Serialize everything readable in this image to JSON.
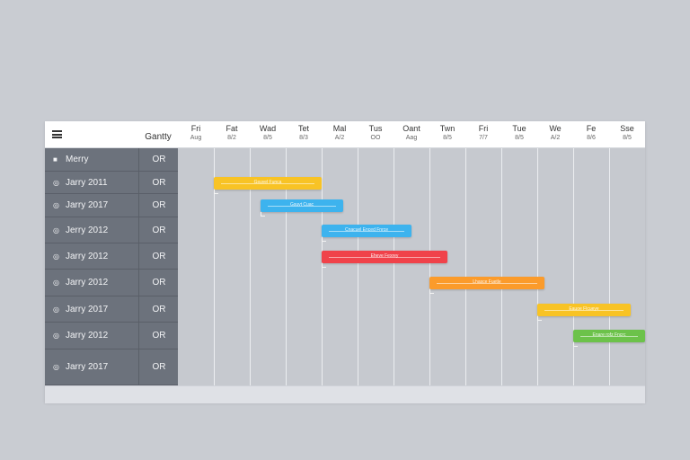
{
  "header": {
    "title": "Gantty",
    "menu_icon": "hamburger-menu-icon",
    "days": [
      {
        "d": "Fri",
        "n": "Aug"
      },
      {
        "d": "Fat",
        "n": "8/2"
      },
      {
        "d": "Wad",
        "n": "8/5"
      },
      {
        "d": "Tet",
        "n": "8/3"
      },
      {
        "d": "Mal",
        "n": "A/2"
      },
      {
        "d": "Tus",
        "n": "OO"
      },
      {
        "d": "Oant",
        "n": "Aag"
      },
      {
        "d": "Twn",
        "n": "8/5"
      },
      {
        "d": "Fri",
        "n": "7/7"
      },
      {
        "d": "Tue",
        "n": "8/5"
      },
      {
        "d": "We",
        "n": "A/2"
      },
      {
        "d": "Fe",
        "n": "8/6"
      },
      {
        "d": "Sse",
        "n": "8/5"
      }
    ]
  },
  "rows": [
    {
      "label": "Merry",
      "tag": "OR",
      "icon": "square-icon"
    },
    {
      "label": "Jarry 2011",
      "tag": "OR",
      "icon": "circle-icon"
    },
    {
      "label": "Jarry 2017",
      "tag": "OR",
      "icon": "circle-icon"
    },
    {
      "label": "Jerry 2012",
      "tag": "OR",
      "icon": "circle-icon"
    },
    {
      "label": "Jarry 2012",
      "tag": "OR",
      "icon": "circle-icon"
    },
    {
      "label": "Jarry 2012",
      "tag": "OR",
      "icon": "circle-icon"
    },
    {
      "label": "Jarry 2017",
      "tag": "OR",
      "icon": "circle-icon"
    },
    {
      "label": "Jarry 2012",
      "tag": "OR",
      "icon": "circle-icon"
    },
    {
      "label": "Jarry 2017",
      "tag": "OR",
      "icon": "circle-icon"
    }
  ],
  "tasks": [
    {
      "row": 1,
      "start": 1.0,
      "end": 4.0,
      "color": "#f8c325",
      "label": "Gsuvel Funca"
    },
    {
      "row": 2,
      "start": 2.3,
      "end": 4.6,
      "color": "#3db3ee",
      "label": "Gsuvt Cuac"
    },
    {
      "row": 3,
      "start": 4.0,
      "end": 6.5,
      "color": "#3db3ee",
      "label": "Cnacuel Enced Fnrce"
    },
    {
      "row": 4,
      "start": 4.0,
      "end": 7.5,
      "color": "#f0424a",
      "label": "Eheve Fexrey"
    },
    {
      "row": 5,
      "start": 7.0,
      "end": 10.2,
      "color": "#fb9b2b",
      "label": "Lhasce Fuetle"
    },
    {
      "row": 6,
      "start": 10.0,
      "end": 12.6,
      "color": "#f8c325",
      "label": "Eauoe Flcueye"
    },
    {
      "row": 7,
      "start": 11.0,
      "end": 13.0,
      "color": "#6cc24a",
      "label": "Enare rofz Fncrc"
    }
  ]
}
